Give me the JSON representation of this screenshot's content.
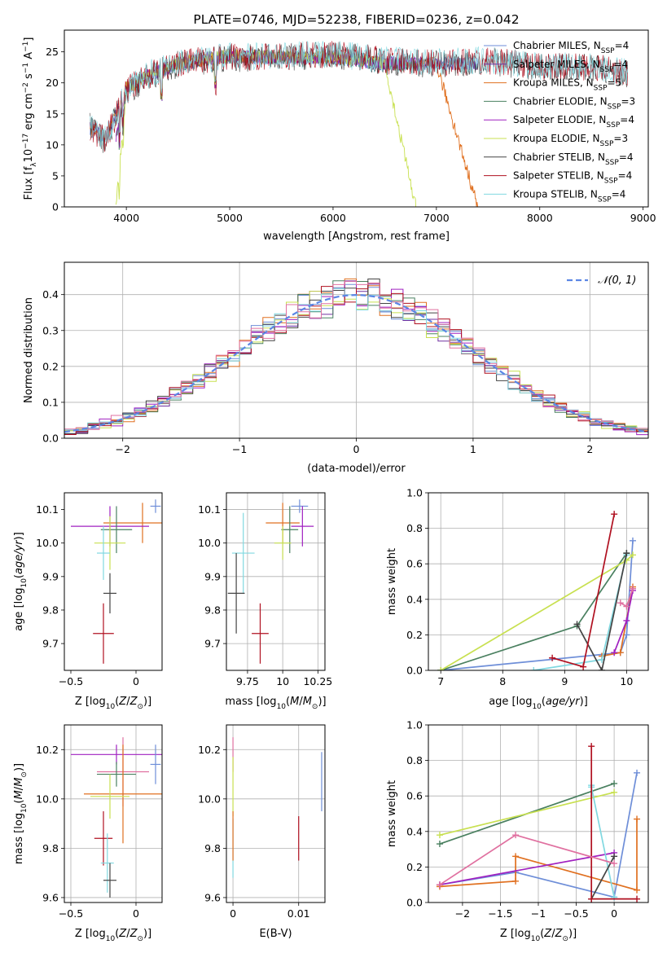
{
  "chart_data": [
    {
      "type": "line",
      "id": "spectrum",
      "title": "PLATE=0746, MJD=52238, FIBERID=0236, z=0.042",
      "xlabel": "wavelength [Angstrom, rest frame]",
      "ylabel": "Flux [f_λ 10^-17 erg cm^-2 s^-1 A^-1]",
      "xlim": [
        3400,
        9050
      ],
      "ylim": [
        0,
        28.5
      ],
      "xticks": [
        4000,
        5000,
        6000,
        7000,
        8000,
        9000
      ],
      "yticks": [
        0,
        5,
        10,
        15,
        20,
        25
      ],
      "grid": false,
      "legend_position": "upper-right",
      "series": [
        {
          "name": "Chabrier MILES, N_SSP=4",
          "color": "#6e8ed8",
          "x": [
            3650,
            3800,
            4000,
            4200,
            4500,
            5000,
            5500,
            6000,
            6500,
            7000,
            7400
          ],
          "y": [
            12.5,
            11.0,
            19.0,
            21.0,
            23.0,
            24.2,
            24.0,
            24.0,
            23.0,
            23.0,
            23.0
          ]
        },
        {
          "name": "Salpeter MILES, N_SSP=4",
          "color": "#7030a0",
          "x": [
            3650,
            3800,
            4000,
            4200,
            4500,
            5000,
            5500,
            6000,
            6500,
            7000,
            7400
          ],
          "y": [
            12.7,
            11.2,
            19.2,
            21.2,
            23.2,
            24.4,
            24.2,
            24.2,
            23.2,
            23.1,
            23.1
          ]
        },
        {
          "name": "Kroupa MILES, N_SSP=5",
          "color": "#e07020",
          "x": [
            3650,
            3800,
            4000,
            4200,
            4500,
            5000,
            5500,
            6000,
            6500,
            7000,
            7400
          ],
          "y": [
            12.6,
            11.1,
            19.1,
            21.1,
            23.1,
            24.3,
            24.1,
            24.1,
            23.1,
            23.1,
            0.0
          ]
        },
        {
          "name": "Chabrier ELODIE, N_SSP=3",
          "color": "#4a8060",
          "x": [
            3900,
            4000,
            4200,
            4500,
            5000,
            5500,
            6000,
            6500,
            6800
          ],
          "y": [
            11.0,
            19.0,
            21.0,
            23.0,
            24.2,
            24.0,
            24.0,
            23.0,
            23.0
          ]
        },
        {
          "name": "Salpeter ELODIE, N_SSP=4",
          "color": "#a020c0",
          "x": [
            3900,
            4000,
            4200,
            4500,
            5000,
            5500,
            6000,
            6500,
            6800
          ],
          "y": [
            11.1,
            19.1,
            21.1,
            23.1,
            24.3,
            24.1,
            24.1,
            23.1,
            23.1
          ]
        },
        {
          "name": "Kroupa ELODIE, N_SSP=3",
          "color": "#c8e050",
          "x": [
            3900,
            4000,
            4200,
            4500,
            5000,
            5500,
            6000,
            6500,
            6800
          ],
          "y": [
            0.0,
            19.2,
            21.2,
            23.2,
            24.4,
            24.2,
            24.2,
            23.2,
            0.0
          ]
        },
        {
          "name": "Chabrier STELIB, N_SSP=4",
          "color": "#444444",
          "x": [
            3650,
            3800,
            4000,
            4200,
            4500,
            5000,
            5500,
            6000,
            6500,
            7000,
            7500,
            8000,
            8500,
            8850
          ],
          "y": [
            13.0,
            10.5,
            18.5,
            21.0,
            23.0,
            24.0,
            24.0,
            24.5,
            23.5,
            23.0,
            23.5,
            22.5,
            22.5,
            21.5
          ]
        },
        {
          "name": "Salpeter STELIB, N_SSP=4",
          "color": "#b01020",
          "x": [
            3650,
            3800,
            4000,
            4200,
            4500,
            5000,
            5500,
            6000,
            6500,
            7000,
            7500,
            8000,
            8500,
            8850
          ],
          "y": [
            12.8,
            10.8,
            18.8,
            21.2,
            23.2,
            24.2,
            24.2,
            24.6,
            23.6,
            23.2,
            23.6,
            22.6,
            22.6,
            21.6
          ]
        },
        {
          "name": "Kroupa STELIB, N_SSP=4",
          "color": "#80d8e0",
          "x": [
            3650,
            3800,
            4000,
            4200,
            4500,
            5000,
            5500,
            6000,
            6500,
            7000,
            7500,
            8000,
            8500,
            8850
          ],
          "y": [
            12.9,
            10.9,
            18.9,
            21.3,
            23.3,
            24.3,
            24.3,
            24.7,
            23.7,
            23.3,
            23.7,
            22.7,
            22.7,
            21.7
          ]
        }
      ]
    },
    {
      "type": "line",
      "id": "residual-hist",
      "xlabel": "(data-model)/error",
      "ylabel": "Normed distribution",
      "xlim": [
        -2.5,
        2.5
      ],
      "ylim": [
        0,
        0.49
      ],
      "xticks": [
        -2,
        -1,
        0,
        1,
        2
      ],
      "yticks": [
        0.0,
        0.1,
        0.2,
        0.3,
        0.4
      ],
      "grid": true,
      "legend_position": "upper-right",
      "series": [
        {
          "name": "𝒩(0, 1)",
          "color": "#5b86e5",
          "style": "dashed",
          "function": "normal-pdf",
          "mu": 0,
          "sigma": 1
        }
      ],
      "step_colors": [
        "#6e8ed8",
        "#7030a0",
        "#e07020",
        "#4a8060",
        "#a020c0",
        "#c8e050",
        "#444444",
        "#b01020",
        "#80d8e0",
        "#e070a0"
      ]
    },
    {
      "type": "scatter",
      "id": "age-vs-z",
      "xlabel": "Z [log10(Z/Z_⊙)]",
      "ylabel": "age [log10(age/yr)]",
      "xlim": [
        -0.55,
        0.2
      ],
      "ylim": [
        9.62,
        10.15
      ],
      "xticks": [
        -0.5,
        0.0
      ],
      "yticks": [
        9.7,
        9.8,
        9.9,
        10.0,
        10.1
      ],
      "grid": false,
      "points": [
        {
          "x": 0.15,
          "y": 10.11,
          "xerr": 0.04,
          "yerr": 0.02,
          "color": "#6e8ed8"
        },
        {
          "x": 0.05,
          "y": 10.06,
          "xerr": 0.3,
          "yerr": 0.06,
          "color": "#e07020"
        },
        {
          "x": -0.2,
          "y": 10.05,
          "xerr": 0.3,
          "yerr": 0.06,
          "color": "#a020c0"
        },
        {
          "x": -0.15,
          "y": 10.04,
          "xerr": 0.12,
          "yerr": 0.07,
          "color": "#4a8060"
        },
        {
          "x": -0.2,
          "y": 10.0,
          "xerr": 0.12,
          "yerr": 0.08,
          "color": "#c8e050"
        },
        {
          "x": -0.25,
          "y": 9.97,
          "xerr": 0.05,
          "yerr": 0.08,
          "color": "#80d8e0"
        },
        {
          "x": -0.2,
          "y": 9.85,
          "xerr": 0.05,
          "yerr": 0.06,
          "color": "#444444"
        },
        {
          "x": -0.25,
          "y": 9.73,
          "xerr": 0.08,
          "yerr": 0.09,
          "color": "#b01020"
        }
      ]
    },
    {
      "type": "scatter",
      "id": "age-vs-mass",
      "xlabel": "mass [log10(M/M_⊙)]",
      "ylabel": "",
      "xlim": [
        9.6,
        10.3
      ],
      "ylim": [
        9.62,
        10.15
      ],
      "xticks": [
        9.75,
        10.0,
        10.25
      ],
      "yticks": [
        9.7,
        9.8,
        9.9,
        10.0,
        10.1
      ],
      "grid": true,
      "points": [
        {
          "x": 10.12,
          "y": 10.11,
          "xerr": 0.06,
          "yerr": 0.02,
          "color": "#6e8ed8"
        },
        {
          "x": 10.0,
          "y": 10.06,
          "xerr": 0.12,
          "yerr": 0.06,
          "color": "#e07020"
        },
        {
          "x": 10.14,
          "y": 10.05,
          "xerr": 0.08,
          "yerr": 0.06,
          "color": "#a020c0"
        },
        {
          "x": 10.05,
          "y": 10.04,
          "xerr": 0.06,
          "yerr": 0.07,
          "color": "#4a8060"
        },
        {
          "x": 10.0,
          "y": 10.0,
          "xerr": 0.06,
          "yerr": 0.05,
          "color": "#c8e050"
        },
        {
          "x": 9.72,
          "y": 9.97,
          "xerr": 0.08,
          "yerr": 0.12,
          "color": "#80d8e0"
        },
        {
          "x": 9.67,
          "y": 9.85,
          "xerr": 0.06,
          "yerr": 0.12,
          "color": "#444444"
        },
        {
          "x": 9.84,
          "y": 9.73,
          "xerr": 0.06,
          "yerr": 0.09,
          "color": "#b01020"
        }
      ]
    },
    {
      "type": "line",
      "id": "weight-vs-age",
      "xlabel": "age [log10(age/yr)]",
      "ylabel": "mass weight",
      "xlim": [
        6.8,
        10.35
      ],
      "ylim": [
        0,
        1.0
      ],
      "xticks": [
        7,
        8,
        9,
        10
      ],
      "yticks": [
        0.0,
        0.2,
        0.4,
        0.6,
        0.8,
        1.0
      ],
      "grid": true,
      "series": [
        {
          "color": "#6e8ed8",
          "x": [
            7.0,
            9.9,
            10.0,
            10.1
          ],
          "y": [
            0.0,
            0.1,
            0.2,
            0.73
          ]
        },
        {
          "color": "#e07020",
          "x": [
            9.6,
            9.9,
            10.1
          ],
          "y": [
            0.08,
            0.1,
            0.47
          ]
        },
        {
          "color": "#4a8060",
          "x": [
            7.0,
            9.2,
            10.0
          ],
          "y": [
            0.0,
            0.25,
            0.66
          ]
        },
        {
          "color": "#c8e050",
          "x": [
            7.0,
            10.0,
            10.1
          ],
          "y": [
            0.0,
            0.62,
            0.65
          ]
        },
        {
          "color": "#a020c0",
          "x": [
            9.8,
            10.0,
            10.1
          ],
          "y": [
            0.1,
            0.28,
            0.45
          ]
        },
        {
          "color": "#80d8e0",
          "x": [
            8.5,
            9.6,
            10.0
          ],
          "y": [
            0.0,
            0.06,
            0.65
          ]
        },
        {
          "color": "#444444",
          "x": [
            9.2,
            9.6,
            10.0
          ],
          "y": [
            0.26,
            0.0,
            0.66
          ]
        },
        {
          "color": "#b01020",
          "x": [
            8.8,
            9.3,
            9.8
          ],
          "y": [
            0.07,
            0.02,
            0.88
          ]
        },
        {
          "color": "#e070a0",
          "x": [
            9.9,
            10.0,
            10.1
          ],
          "y": [
            0.38,
            0.36,
            0.46
          ]
        }
      ]
    },
    {
      "type": "scatter",
      "id": "mass-vs-z",
      "xlabel": "Z [log10(Z/Z_⊙)]",
      "ylabel": "mass [log10(M/M_⊙)]",
      "xlim": [
        -0.55,
        0.2
      ],
      "ylim": [
        9.58,
        10.3
      ],
      "xticks": [
        -0.5,
        0.0
      ],
      "yticks": [
        9.6,
        9.8,
        10.0,
        10.2
      ],
      "grid": true,
      "points": [
        {
          "x": -0.15,
          "y": 10.18,
          "xerr": 0.35,
          "yerr": 0.04,
          "color": "#a020c0"
        },
        {
          "x": 0.15,
          "y": 10.14,
          "xerr": 0.04,
          "yerr": 0.08,
          "color": "#6e8ed8"
        },
        {
          "x": -0.1,
          "y": 10.11,
          "xerr": 0.2,
          "yerr": 0.14,
          "color": "#e070a0"
        },
        {
          "x": -0.15,
          "y": 10.1,
          "xerr": 0.15,
          "yerr": 0.05,
          "color": "#4a8060"
        },
        {
          "x": -0.1,
          "y": 10.02,
          "xerr": 0.3,
          "yerr": 0.2,
          "color": "#e07020"
        },
        {
          "x": -0.2,
          "y": 10.01,
          "xerr": 0.15,
          "yerr": 0.09,
          "color": "#c8e050"
        },
        {
          "x": -0.25,
          "y": 9.84,
          "xerr": 0.07,
          "yerr": 0.11,
          "color": "#b01020"
        },
        {
          "x": -0.22,
          "y": 9.74,
          "xerr": 0.05,
          "yerr": 0.12,
          "color": "#80d8e0"
        },
        {
          "x": -0.2,
          "y": 9.67,
          "xerr": 0.05,
          "yerr": 0.07,
          "color": "#444444"
        }
      ]
    },
    {
      "type": "scatter",
      "id": "mass-vs-ebv",
      "xlabel": "E(B-V)",
      "ylabel": "",
      "xlim": [
        -0.001,
        0.014
      ],
      "ylim": [
        9.58,
        10.3
      ],
      "xticks": [
        0.0,
        0.01
      ],
      "yticks": [
        9.6,
        9.8,
        10.0,
        10.2
      ],
      "grid": true,
      "points": [
        {
          "x": 0.0,
          "y": 10.18,
          "xerr": 0.0,
          "yerr": 0.07,
          "color": "#e070a0"
        },
        {
          "x": 0.0,
          "y": 10.05,
          "xerr": 0.0,
          "yerr": 0.12,
          "color": "#c8e050"
        },
        {
          "x": 0.0,
          "y": 9.8,
          "xerr": 0.0,
          "yerr": 0.12,
          "color": "#80d8e0"
        },
        {
          "x": 0.0,
          "y": 9.85,
          "xerr": 0.0,
          "yerr": 0.1,
          "color": "#e07020"
        },
        {
          "x": 0.01,
          "y": 9.84,
          "xerr": 0.0,
          "yerr": 0.09,
          "color": "#b01020"
        },
        {
          "x": 0.0135,
          "y": 10.07,
          "xerr": 0.0,
          "yerr": 0.12,
          "color": "#6e8ed8"
        }
      ]
    },
    {
      "type": "line",
      "id": "weight-vs-z",
      "xlabel": "Z [log10(Z/Z_⊙)]",
      "ylabel": "mass weight",
      "xlim": [
        -2.45,
        0.45
      ],
      "ylim": [
        0,
        1.0
      ],
      "xticks": [
        -2.0,
        -1.5,
        -1.0,
        -0.5,
        0.0
      ],
      "yticks": [
        0.0,
        0.2,
        0.4,
        0.6,
        0.8,
        1.0
      ],
      "grid": true,
      "series": [
        {
          "color": "#6e8ed8",
          "x": [
            -2.3,
            -1.3,
            0.0,
            0.3
          ],
          "y": [
            0.1,
            0.17,
            0.03,
            0.73
          ]
        },
        {
          "color": "#e07020",
          "x": [
            -2.3,
            -1.3,
            -1.3,
            0.3,
            0.3
          ],
          "y": [
            0.09,
            0.12,
            0.26,
            0.07,
            0.47
          ]
        },
        {
          "color": "#4a8060",
          "x": [
            -2.3,
            0.0
          ],
          "y": [
            0.33,
            0.67
          ]
        },
        {
          "color": "#c8e050",
          "x": [
            -2.3,
            0.0
          ],
          "y": [
            0.38,
            0.62
          ]
        },
        {
          "color": "#a020c0",
          "x": [
            -2.3,
            0.0
          ],
          "y": [
            0.1,
            0.28
          ]
        },
        {
          "color": "#80d8e0",
          "x": [
            -0.3,
            -0.3,
            0.0
          ],
          "y": [
            0.66,
            0.65,
            0.03
          ]
        },
        {
          "color": "#444444",
          "x": [
            -0.3,
            0.0
          ],
          "y": [
            0.02,
            0.26
          ]
        },
        {
          "color": "#b01020",
          "x": [
            -0.3,
            -0.3,
            0.3
          ],
          "y": [
            0.88,
            0.02,
            0.02
          ]
        },
        {
          "color": "#e070a0",
          "x": [
            -2.3,
            -1.3,
            0.0
          ],
          "y": [
            0.1,
            0.38,
            0.22
          ]
        }
      ]
    }
  ]
}
